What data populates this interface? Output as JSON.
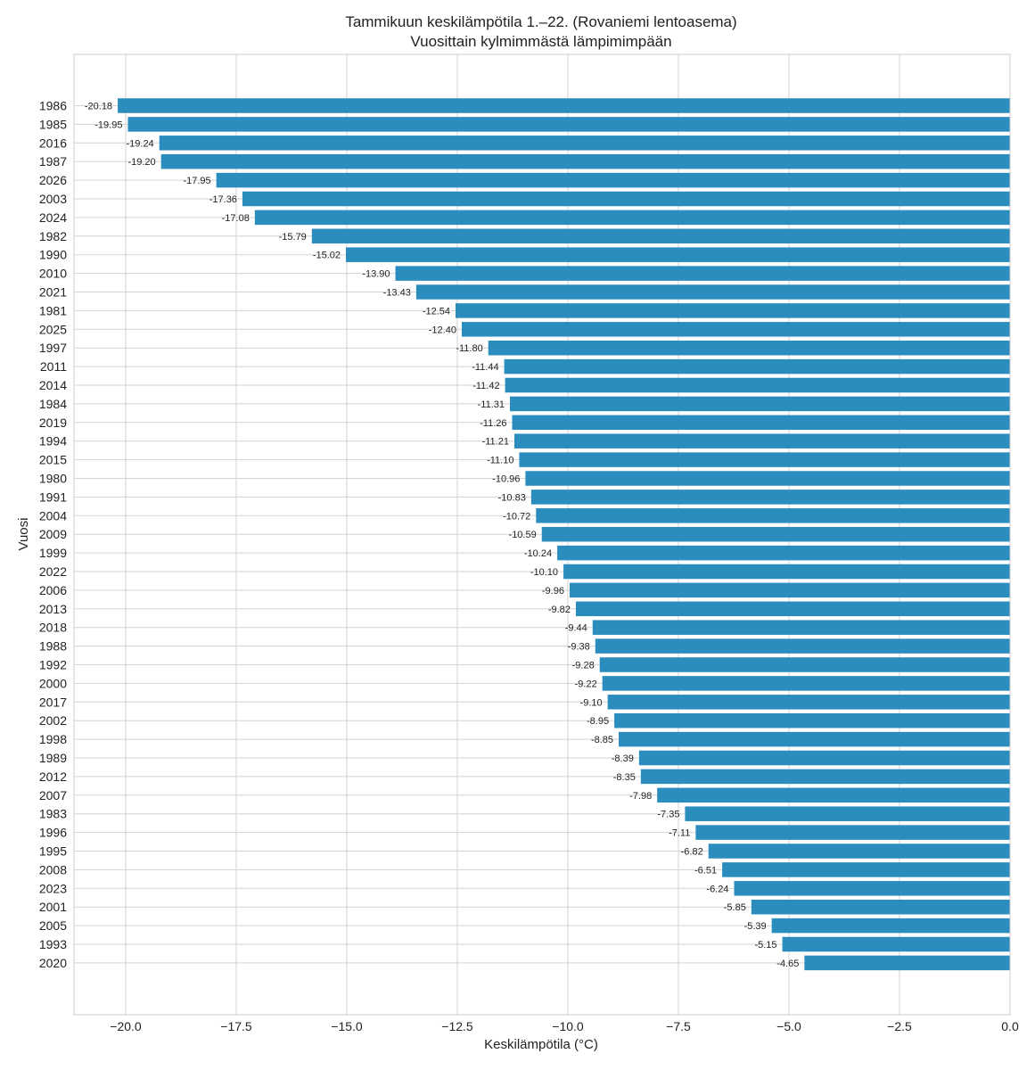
{
  "chart_data": {
    "type": "bar",
    "orientation": "horizontal",
    "title": "Tammikuun keskilämpötila 1.–22. (Rovaniemi lentoasema)",
    "subtitle": "Vuosittain kylmimmästä lämpimimpään",
    "xlabel": "Keskilämpötila (°C)",
    "ylabel": "Vuosi",
    "xlim": [
      -21.2,
      0.0
    ],
    "xticks": [
      -20.0,
      -17.5,
      -15.0,
      -12.5,
      -10.0,
      -7.5,
      -5.0,
      -2.5,
      0.0
    ],
    "xtick_labels": [
      "−20.0",
      "−17.5",
      "−15.0",
      "−12.5",
      "−10.0",
      "−7.5",
      "−5.0",
      "−2.5",
      "0.0"
    ],
    "grid": true,
    "bar_color": "#2b8cbe",
    "categories": [
      "1986",
      "1985",
      "2016",
      "1987",
      "2026",
      "2003",
      "2024",
      "1982",
      "1990",
      "2010",
      "2021",
      "1981",
      "2025",
      "1997",
      "2011",
      "2014",
      "1984",
      "2019",
      "1994",
      "2015",
      "1980",
      "1991",
      "2004",
      "2009",
      "1999",
      "2022",
      "2006",
      "2013",
      "2018",
      "1988",
      "1992",
      "2000",
      "2017",
      "2002",
      "1998",
      "1989",
      "2012",
      "2007",
      "1983",
      "1996",
      "1995",
      "2008",
      "2023",
      "2001",
      "2005",
      "1993",
      "2020"
    ],
    "values": [
      -20.18,
      -19.95,
      -19.24,
      -19.2,
      -17.95,
      -17.36,
      -17.08,
      -15.79,
      -15.02,
      -13.9,
      -13.43,
      -12.54,
      -12.4,
      -11.8,
      -11.44,
      -11.42,
      -11.31,
      -11.26,
      -11.21,
      -11.1,
      -10.96,
      -10.83,
      -10.72,
      -10.59,
      -10.24,
      -10.1,
      -9.96,
      -9.82,
      -9.44,
      -9.38,
      -9.28,
      -9.22,
      -9.1,
      -8.95,
      -8.85,
      -8.39,
      -8.35,
      -7.98,
      -7.35,
      -7.11,
      -6.82,
      -6.51,
      -6.24,
      -5.85,
      -5.39,
      -5.15,
      -4.65
    ],
    "data_labels": [
      "-20.18",
      "-19.95",
      "-19.24",
      "-19.20",
      "-17.95",
      "-17.36",
      "-17.08",
      "-15.79",
      "-15.02",
      "-13.90",
      "-13.43",
      "-12.54",
      "-12.40",
      "-11.80",
      "-11.44",
      "-11.42",
      "-11.31",
      "-11.26",
      "-11.21",
      "-11.10",
      "-10.96",
      "-10.83",
      "-10.72",
      "-10.59",
      "-10.24",
      "-10.10",
      "-9.96",
      "-9.82",
      "-9.44",
      "-9.38",
      "-9.28",
      "-9.22",
      "-9.10",
      "-8.95",
      "-8.85",
      "-8.39",
      "-8.35",
      "-7.98",
      "-7.35",
      "-7.11",
      "-6.82",
      "-6.51",
      "-6.24",
      "-5.85",
      "-5.39",
      "-5.15",
      "-4.65"
    ]
  }
}
